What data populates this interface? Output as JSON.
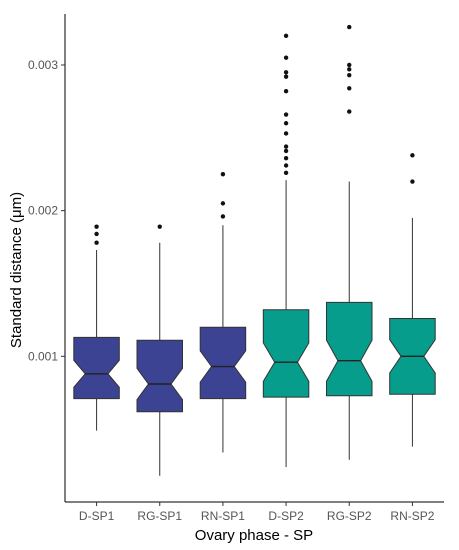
{
  "chart_data": {
    "type": "box",
    "notched": true,
    "xlabel": "Ovary phase - SP",
    "ylabel": "Standard distance (μm)",
    "ylim": [
      0.0,
      0.00335
    ],
    "yticks": [
      0.001,
      0.002,
      0.003
    ],
    "ytick_labels": [
      "0.001",
      "0.002",
      "0.003"
    ],
    "grid": false,
    "legend": "none",
    "colors": {
      "SP1": "#3b4392",
      "SP2": "#069d8d",
      "axis": "#000000",
      "tick_text": "#555555"
    },
    "boxes": [
      {
        "category": "D-SP1",
        "group": "SP1",
        "whisker_low": 0.00049,
        "q1": 0.00071,
        "median": 0.00088,
        "q3": 0.00113,
        "whisker_high": 0.00173,
        "outliers": [
          0.00178,
          0.00184,
          0.00189
        ]
      },
      {
        "category": "RG-SP1",
        "group": "SP1",
        "whisker_low": 0.00018,
        "q1": 0.00062,
        "median": 0.00081,
        "q3": 0.00111,
        "whisker_high": 0.00178,
        "outliers": [
          0.00189
        ]
      },
      {
        "category": "RN-SP1",
        "group": "SP1",
        "whisker_low": 0.00034,
        "q1": 0.00071,
        "median": 0.00093,
        "q3": 0.0012,
        "whisker_high": 0.0019,
        "outliers": [
          0.00196,
          0.00205,
          0.00225
        ]
      },
      {
        "category": "D-SP2",
        "group": "SP2",
        "whisker_low": 0.00024,
        "q1": 0.00072,
        "median": 0.00096,
        "q3": 0.00132,
        "whisker_high": 0.00221,
        "outliers": [
          0.00226,
          0.00231,
          0.00236,
          0.00241,
          0.00244,
          0.00253,
          0.0026,
          0.00266,
          0.00282,
          0.00292,
          0.00295,
          0.00305,
          0.0032
        ]
      },
      {
        "category": "RG-SP2",
        "group": "SP2",
        "whisker_low": 0.00029,
        "q1": 0.00073,
        "median": 0.00097,
        "q3": 0.00137,
        "whisker_high": 0.0022,
        "outliers": [
          0.00268,
          0.00284,
          0.00293,
          0.00297,
          0.003,
          0.00326
        ]
      },
      {
        "category": "RN-SP2",
        "group": "SP2",
        "whisker_low": 0.00038,
        "q1": 0.00074,
        "median": 0.001,
        "q3": 0.00126,
        "whisker_high": 0.00195,
        "outliers": [
          0.0022,
          0.00238
        ]
      }
    ]
  }
}
